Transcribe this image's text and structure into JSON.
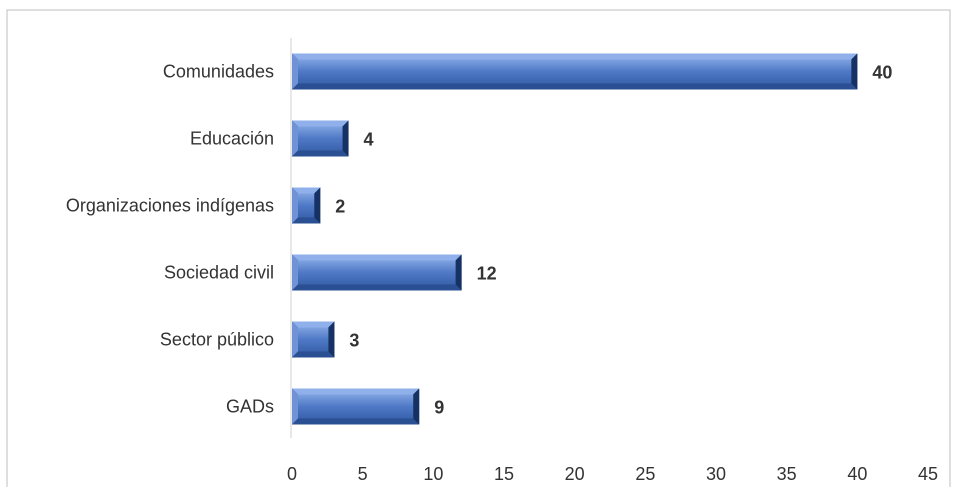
{
  "chart_data": {
    "type": "bar",
    "orientation": "horizontal",
    "categories": [
      "Comunidades",
      "Educación",
      "Organizaciones indígenas",
      "Sociedad civil",
      "Sector público ",
      "GADs"
    ],
    "values": [
      40,
      4,
      2,
      12,
      3,
      9
    ],
    "data_labels": [
      "40",
      "4",
      "2",
      "12",
      "3",
      "9"
    ],
    "xlim": [
      0,
      45
    ],
    "x_ticks": [
      0,
      5,
      10,
      15,
      20,
      25,
      30,
      35,
      40,
      45
    ],
    "x_tick_labels": [
      "0",
      "5",
      "10",
      "15",
      "20",
      "25",
      "30",
      "35",
      "40",
      "45"
    ],
    "title": "",
    "xlabel": "",
    "ylabel": "",
    "grid": false,
    "legend": "none",
    "colors": {
      "bar_face": "#4f79c6",
      "bar_light": "#8fb0ea",
      "bar_dark": "#1f3f7c",
      "text": "#333333",
      "axis": "#d0d0d0",
      "frame": "#bfbfbf"
    }
  }
}
